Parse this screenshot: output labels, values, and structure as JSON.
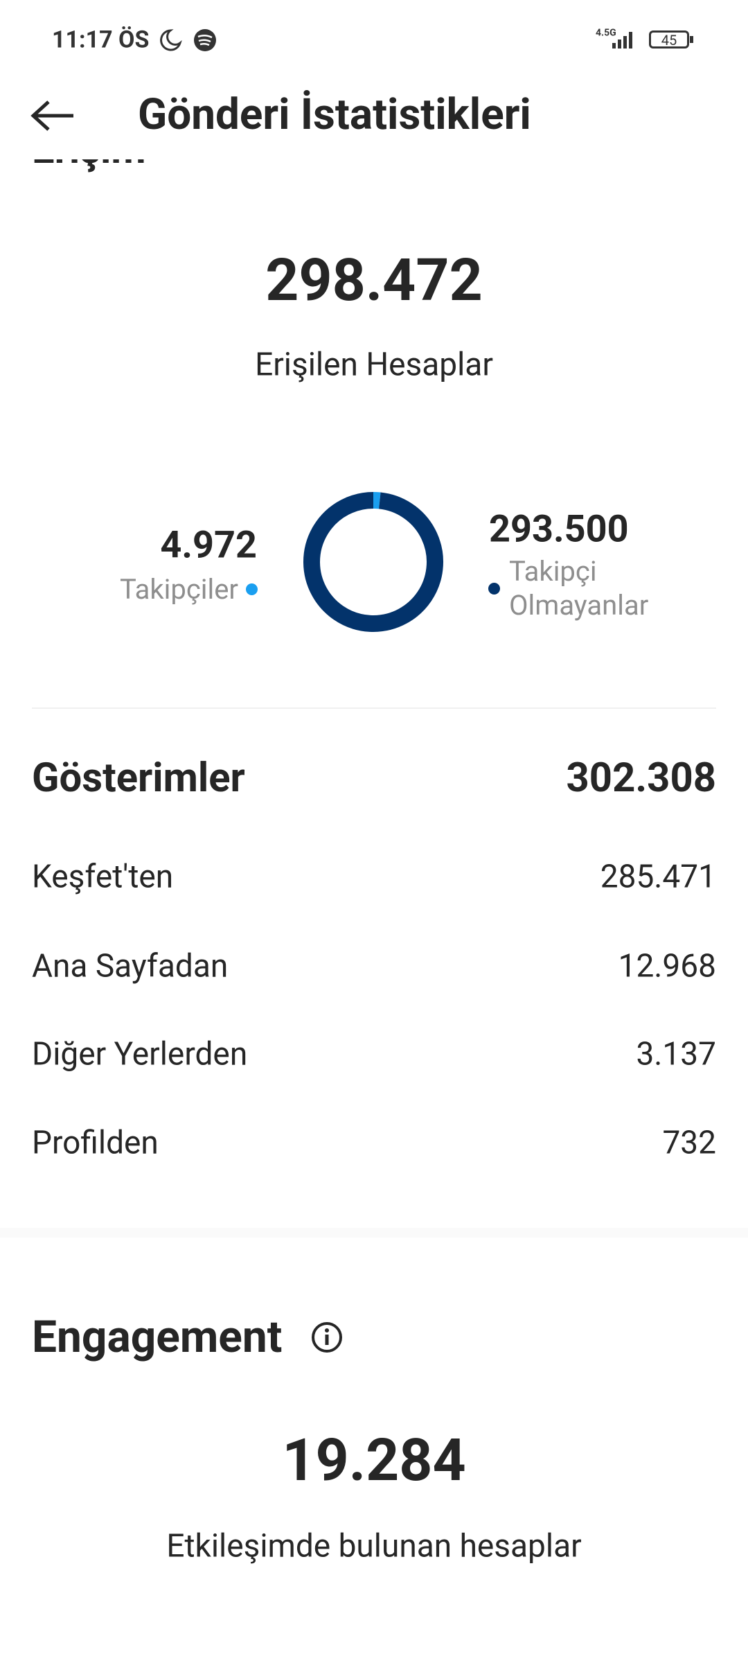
{
  "status_bar": {
    "time": "11:17 ÖS",
    "network": "4.5G",
    "battery": "45"
  },
  "header": {
    "title": "Gönderi İstatistikleri"
  },
  "reach": {
    "section_title": "Erişim",
    "total": "298.472",
    "total_label": "Erişilen Hesaplar",
    "donut": {
      "type": "pie",
      "categories": [
        "Takipçiler",
        "Takipçi Olmayanlar"
      ],
      "values": [
        4972,
        293500
      ],
      "value_labels": [
        "4.972",
        "293.500"
      ],
      "colors": [
        "#1a9ff0",
        "#03336b"
      ]
    }
  },
  "impressions": {
    "title": "Gösterimler",
    "total": "302.308",
    "rows": [
      [
        "Keşfet'ten",
        "285.471"
      ],
      [
        "Ana Sayfadan",
        "12.968"
      ],
      [
        "Diğer Yerlerden",
        "3.137"
      ],
      [
        "Profilden",
        "732"
      ]
    ]
  },
  "engagement": {
    "title": "Engagement",
    "total": "19.284",
    "total_label": "Etkileşimde bulunan hesaplar"
  }
}
